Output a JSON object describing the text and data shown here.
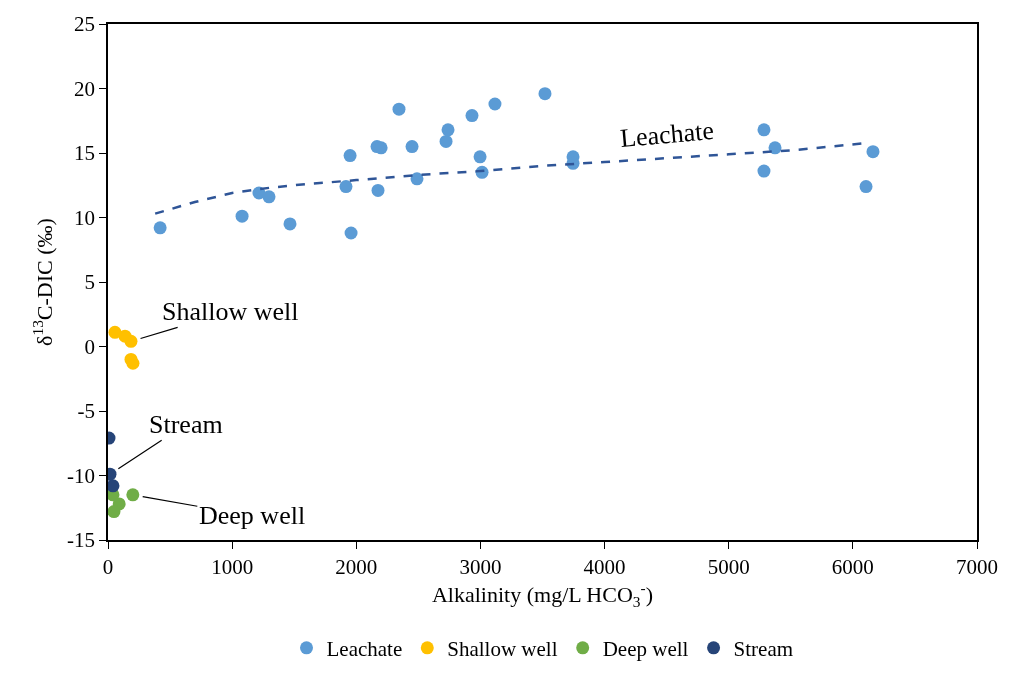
{
  "chart_data": {
    "type": "scatter",
    "xlabel": "Alkalinity (mg/L HCO$_{3}$$^{-}$)",
    "ylabel": "δ$^{13}$C-DIC (‰)",
    "xlim": [
      0,
      7000
    ],
    "xticks": [
      0,
      1000,
      2000,
      3000,
      4000,
      5000,
      6000,
      7000
    ],
    "ylim": [
      -15,
      25
    ],
    "yticks": [
      -15,
      -10,
      -5,
      0,
      5,
      10,
      15,
      20,
      25
    ],
    "legend": "bottom",
    "marker": "circle",
    "series": [
      {
        "name": "Leachate",
        "color": "#5b9bd5",
        "x": [
          420,
          1080,
          1216,
          1297,
          1466,
          1917,
          1950,
          1958,
          2167,
          2200,
          2175,
          2344,
          2449,
          2489,
          2723,
          2739,
          2932,
          2997,
          3013,
          3117,
          3520,
          3746,
          3746,
          5284,
          5284,
          5373,
          6106,
          6162
        ],
        "values": [
          9.2,
          10.1,
          11.9,
          11.6,
          9.5,
          12.4,
          14.8,
          8.8,
          15.5,
          15.4,
          12.1,
          18.4,
          15.5,
          13.0,
          15.9,
          16.8,
          17.9,
          14.7,
          13.5,
          18.8,
          19.6,
          14.7,
          14.2,
          16.8,
          13.6,
          15.4,
          12.4,
          15.1
        ]
      },
      {
        "name": "Shallow well",
        "color": "#ffc000",
        "x": [
          56,
          137,
          185,
          185,
          201
        ],
        "values": [
          1.1,
          0.8,
          0.4,
          -1.0,
          -1.3
        ]
      },
      {
        "name": "Deep well",
        "color": "#70ad47",
        "x": [
          40,
          200,
          90,
          48
        ],
        "values": [
          -11.5,
          -11.5,
          -12.2,
          -12.8
        ]
      },
      {
        "name": "Stream",
        "color": "#264478",
        "x": [
          8,
          16,
          40
        ],
        "values": [
          -7.1,
          -9.9,
          -10.8
        ]
      },
      {
        "type": "line",
        "color": "#2f5597",
        "line_style": "dashed",
        "marker": "none",
        "x": [
          380,
          700,
          1000,
          1300,
          1500,
          2000,
          2500,
          3000,
          3500,
          4000,
          4500,
          5000,
          5500,
          6140
        ],
        "values": [
          10.3,
          11.2,
          11.9,
          12.3,
          12.5,
          12.9,
          13.3,
          13.6,
          14.0,
          14.3,
          14.6,
          14.9,
          15.2,
          15.8
        ]
      }
    ],
    "annotations": [
      {
        "text": "Shallow well",
        "x": 185,
        "y": 0.4
      },
      {
        "text": "Stream",
        "x": 16,
        "y": -9.9
      },
      {
        "text": "Deep well",
        "x": 200,
        "y": -11.5
      },
      {
        "text": "Leachate",
        "x": 4500,
        "y": 14.6
      }
    ]
  }
}
